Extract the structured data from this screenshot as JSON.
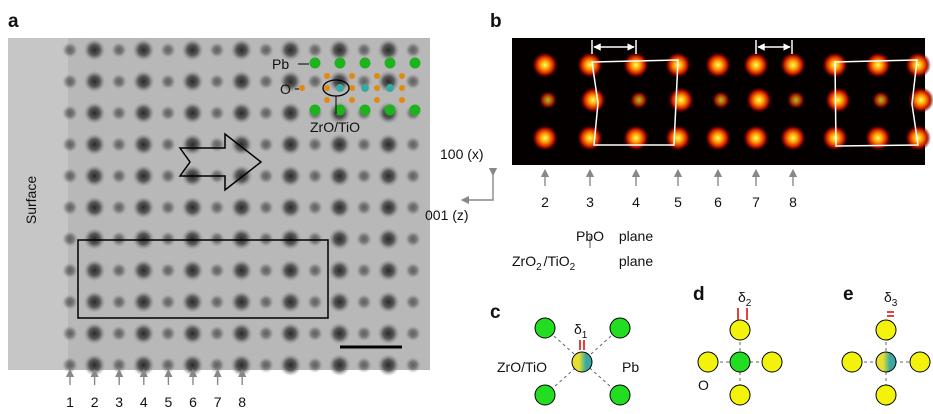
{
  "panels": {
    "a": {
      "label": "a",
      "atom_labels": {
        "pb": "Pb",
        "o": "O",
        "center": "ZrO/TiO"
      },
      "surface": "Surface",
      "column_numbers": [
        "1",
        "2",
        "3",
        "4",
        "5",
        "6",
        "7",
        "8"
      ]
    },
    "b": {
      "label": "b",
      "axis_x": "100 (x)",
      "axis_z": "001 (z)",
      "column_numbers": [
        "2",
        "3",
        "4",
        "5",
        "6",
        "7",
        "8"
      ],
      "zro2_tio2": [
        "ZrO",
        "2",
        "/",
        "TiO",
        "2"
      ],
      "pbo": "PbO",
      "plane_1": "plane",
      "plane_2": "plane"
    },
    "c": {
      "label": "c",
      "delta": [
        "δ",
        "1"
      ],
      "center": "ZrO/TiO",
      "corner": "Pb"
    },
    "d": {
      "label": "d",
      "delta": [
        "δ",
        "2"
      ],
      "corner": "O"
    },
    "e": {
      "label": "e",
      "delta": [
        "δ",
        "3"
      ]
    }
  }
}
